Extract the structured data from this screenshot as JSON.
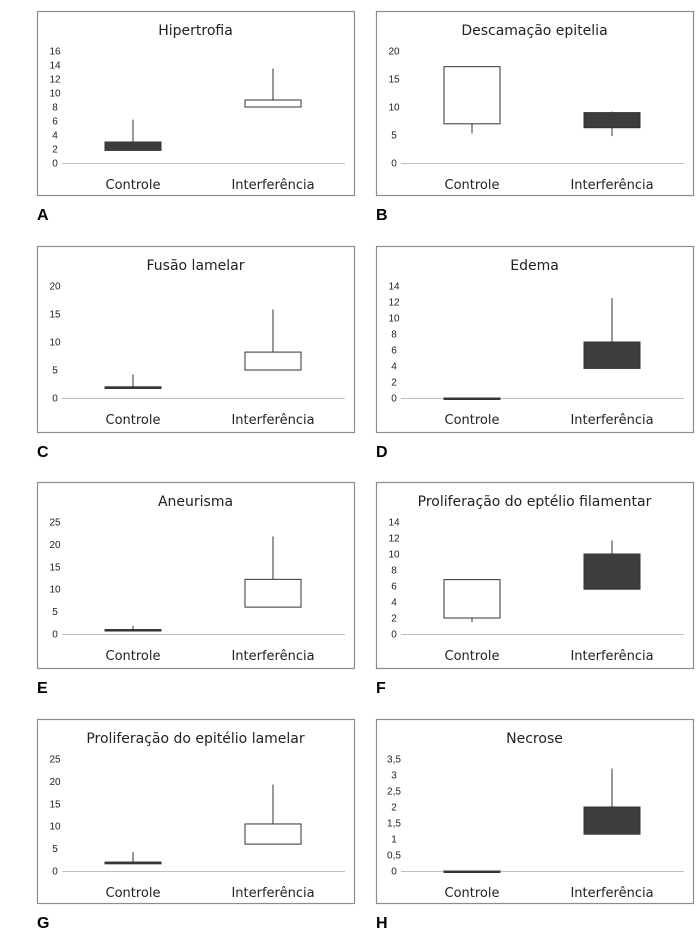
{
  "chart_data": [
    {
      "panel": "A",
      "type": "box",
      "title": "Hipertrofia",
      "yticks": [
        "16",
        "14",
        "12",
        "10",
        "8",
        "6",
        "4",
        "2",
        "0"
      ],
      "ylim": [
        0,
        16
      ],
      "categories": [
        "Controle",
        "Interferência"
      ],
      "boxes": [
        {
          "q1": 1.8,
          "q3": 3.0,
          "whisker_low": 1.8,
          "whisker_high": 6.2,
          "fill": "#3d3d3d"
        },
        {
          "q1": 8.0,
          "q3": 9.0,
          "whisker_low": 8.0,
          "whisker_high": 13.5,
          "fill": "#ffffff"
        }
      ]
    },
    {
      "panel": "B",
      "type": "box",
      "title": "Descamação epitelia",
      "yticks": [
        "20",
        "15",
        "10",
        "5",
        "0"
      ],
      "ylim": [
        0,
        20
      ],
      "categories": [
        "Controle",
        "Interferência"
      ],
      "boxes": [
        {
          "q1": 7.0,
          "q3": 17.2,
          "whisker_low": 5.3,
          "whisker_high": 17.2,
          "fill": "#ffffff"
        },
        {
          "q1": 6.3,
          "q3": 9.0,
          "whisker_low": 4.8,
          "whisker_high": 9.2,
          "fill": "#3d3d3d"
        }
      ]
    },
    {
      "panel": "C",
      "type": "box",
      "title": "Fusão lamelar",
      "yticks": [
        "20",
        "15",
        "10",
        "5",
        "0"
      ],
      "ylim": [
        0,
        20
      ],
      "categories": [
        "Controle",
        "Interferência"
      ],
      "boxes": [
        {
          "q1": 1.7,
          "q3": 2.0,
          "whisker_low": 1.7,
          "whisker_high": 4.2,
          "fill": "#3d3d3d"
        },
        {
          "q1": 5.0,
          "q3": 8.2,
          "whisker_low": 5.0,
          "whisker_high": 15.8,
          "fill": "#ffffff"
        }
      ]
    },
    {
      "panel": "D",
      "type": "box",
      "title": "Edema",
      "yticks": [
        "14",
        "12",
        "10",
        "8",
        "6",
        "4",
        "2",
        "0"
      ],
      "ylim": [
        0,
        14
      ],
      "categories": [
        "Controle",
        "Interferência"
      ],
      "boxes": [
        {
          "q1": 0.0,
          "q3": 0.0,
          "whisker_low": 0.0,
          "whisker_high": 0.0,
          "fill": "#3d3d3d"
        },
        {
          "q1": 3.7,
          "q3": 7.0,
          "whisker_low": 3.7,
          "whisker_high": 12.5,
          "fill": "#3d3d3d"
        }
      ]
    },
    {
      "panel": "E",
      "type": "box",
      "title": "Aneurisma",
      "yticks": [
        "25",
        "20",
        "15",
        "10",
        "5",
        "0"
      ],
      "ylim": [
        0,
        25
      ],
      "categories": [
        "Controle",
        "Interferência"
      ],
      "boxes": [
        {
          "q1": 0.8,
          "q3": 1.0,
          "whisker_low": 0.8,
          "whisker_high": 1.8,
          "fill": "#3d3d3d"
        },
        {
          "q1": 6.0,
          "q3": 12.2,
          "whisker_low": 6.0,
          "whisker_high": 21.8,
          "fill": "#ffffff"
        }
      ]
    },
    {
      "panel": "F",
      "type": "box",
      "title": "Proliferação do eptélio filamentar",
      "yticks": [
        "14",
        "12",
        "10",
        "8",
        "6",
        "4",
        "2",
        "0"
      ],
      "ylim": [
        0,
        14
      ],
      "categories": [
        "Controle",
        "Interferência"
      ],
      "boxes": [
        {
          "q1": 2.0,
          "q3": 6.8,
          "whisker_low": 1.5,
          "whisker_high": 6.8,
          "fill": "#ffffff"
        },
        {
          "q1": 5.6,
          "q3": 10.0,
          "whisker_low": 5.6,
          "whisker_high": 11.7,
          "fill": "#3d3d3d"
        }
      ]
    },
    {
      "panel": "G",
      "type": "box",
      "title": "Proliferação do epitélio lamelar",
      "yticks": [
        "25",
        "20",
        "15",
        "10",
        "5",
        "0"
      ],
      "ylim": [
        0,
        25
      ],
      "categories": [
        "Controle",
        "Interferência"
      ],
      "boxes": [
        {
          "q1": 1.6,
          "q3": 2.0,
          "whisker_low": 1.6,
          "whisker_high": 4.2,
          "fill": "#3d3d3d"
        },
        {
          "q1": 6.0,
          "q3": 10.5,
          "whisker_low": 6.0,
          "whisker_high": 19.3,
          "fill": "#ffffff"
        }
      ]
    },
    {
      "panel": "H",
      "type": "box",
      "title": "Necrose",
      "yticks": [
        "3,5",
        "3",
        "2,5",
        "2",
        "1,5",
        "1",
        "0,5",
        "0"
      ],
      "ylim": [
        0,
        3.5
      ],
      "categories": [
        "Controle",
        "Interferência"
      ],
      "boxes": [
        {
          "q1": 0.0,
          "q3": 0.0,
          "whisker_low": 0.0,
          "whisker_high": 0.0,
          "fill": "#3d3d3d"
        },
        {
          "q1": 1.15,
          "q3": 2.0,
          "whisker_low": 1.15,
          "whisker_high": 3.2,
          "fill": "#3d3d3d"
        }
      ]
    }
  ]
}
